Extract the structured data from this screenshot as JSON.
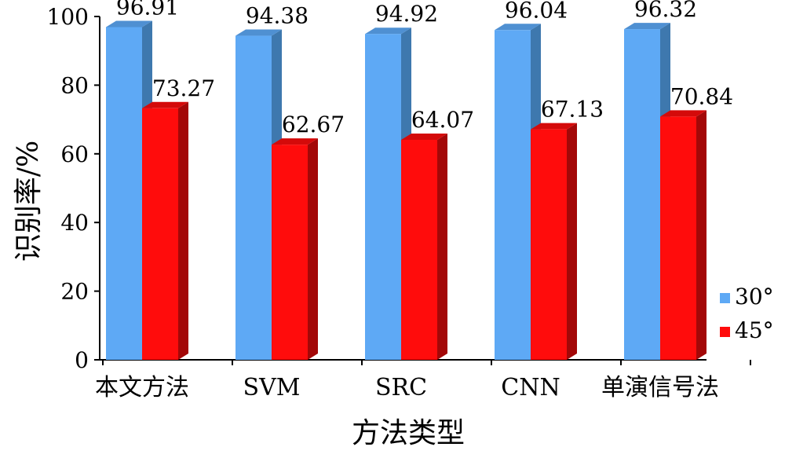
{
  "chart_data": {
    "type": "bar",
    "categories": [
      "本文方法",
      "SVM",
      "SRC",
      "CNN",
      "单演信号法"
    ],
    "series": [
      {
        "name": "30°",
        "values": [
          96.91,
          94.38,
          94.92,
          96.04,
          96.32
        ],
        "color": "#5EA9F5",
        "side_color": "#3E78AE",
        "top_color": "#4F90D2"
      },
      {
        "name": "45°",
        "values": [
          73.27,
          62.67,
          64.07,
          67.13,
          70.84
        ],
        "color": "#FF0C0C",
        "side_color": "#A30808",
        "top_color": "#D40A0A"
      }
    ],
    "xlabel": "方法类型",
    "ylabel": "识别率/%",
    "ylim": [
      0,
      100
    ],
    "yticks": [
      "0",
      "20",
      "40",
      "60",
      "80",
      "100"
    ],
    "legend_position": "right",
    "grid": false
  }
}
